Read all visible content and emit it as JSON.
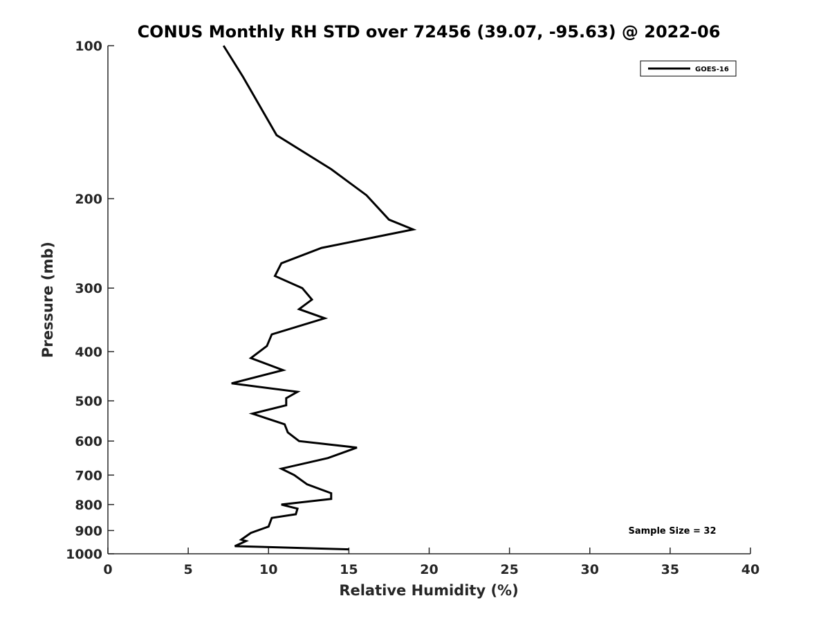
{
  "chart_data": {
    "type": "line",
    "title": "CONUS Monthly RH STD over 72456 (39.07, -95.63) @ 2022-06",
    "xlabel": "Relative Humidity (%)",
    "ylabel": "Pressure (mb)",
    "xlim": [
      0,
      40
    ],
    "ylim": [
      1000,
      100
    ],
    "y_scale": "log",
    "y_reversed": true,
    "grid": false,
    "legend_position": "top-right",
    "x_ticks": [
      0,
      5,
      10,
      15,
      20,
      25,
      30,
      35,
      40
    ],
    "x_tick_labels": [
      "0",
      "5",
      "10",
      "15",
      "20",
      "25",
      "30",
      "35",
      "40"
    ],
    "y_ticks": [
      100,
      200,
      300,
      400,
      500,
      600,
      700,
      800,
      900,
      1000
    ],
    "y_tick_labels": [
      "100",
      "200",
      "300",
      "400",
      "500",
      "600",
      "700",
      "800",
      "900",
      "1000"
    ],
    "series": [
      {
        "name": "GOES-16",
        "color": "#000000",
        "x": [
          7.2,
          8.4,
          10.5,
          13.9,
          16.1,
          17.5,
          19.0,
          13.3,
          10.8,
          10.4,
          12.1,
          12.7,
          11.9,
          13.5,
          10.2,
          9.9,
          8.9,
          10.9,
          7.7,
          11.8,
          11.1,
          11.1,
          9.0,
          11.0,
          11.2,
          11.9,
          15.5,
          13.7,
          10.8,
          11.6,
          12.4,
          13.9,
          13.9,
          10.8,
          11.8,
          11.7,
          10.2,
          10.0,
          8.9,
          8.3,
          8.6,
          7.9,
          15.0
        ],
        "y": [
          100,
          115,
          150,
          175,
          197,
          220,
          230,
          250,
          268,
          284,
          300,
          316,
          330,
          344,
          370,
          390,
          412,
          435,
          462,
          480,
          494,
          510,
          530,
          556,
          577,
          600,
          618,
          648,
          680,
          700,
          730,
          760,
          780,
          800,
          815,
          836,
          850,
          884,
          910,
          938,
          944,
          966,
          980
        ]
      }
    ],
    "annotations": [
      "Sample Size = 32"
    ]
  }
}
